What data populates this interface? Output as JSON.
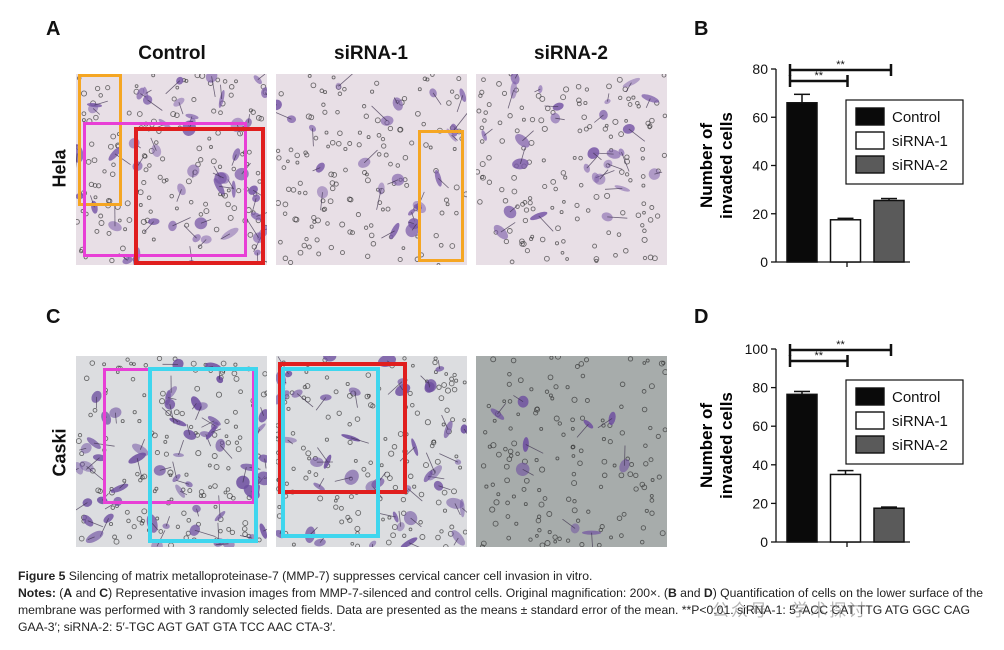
{
  "panels": {
    "a_letter": "A",
    "b_letter": "B",
    "c_letter": "C",
    "d_letter": "D"
  },
  "columns": [
    "Control",
    "siRNA-1",
    "siRNA-2"
  ],
  "rows": [
    "Hela",
    "Caski"
  ],
  "colors": {
    "hela_background": "#e8dfe6",
    "hela_cell": "#7a5aa8",
    "caski_background": "#dcdde0",
    "caski_cell": "#6e4fa0",
    "caski_sirna2_background": "#a7acab",
    "roi_orange": "#f5a623",
    "roi_magenta": "#e83fd6",
    "roi_red": "#e01e1e",
    "roi_cyan": "#3fd6ee",
    "bar_control": "#0a0a0a",
    "bar_sirna1": "#ffffff",
    "bar_sirna2": "#5a5a5a"
  },
  "chart_data": [
    {
      "panel": "B",
      "type": "bar",
      "categories": [
        "Control",
        "siRNA-1",
        "siRNA-2"
      ],
      "values": [
        66,
        17.5,
        25.5
      ],
      "errors": [
        3.5,
        0.6,
        0.8
      ],
      "ylabel_line1": "Number of",
      "ylabel_line2": "invaded cells",
      "ylim": [
        0,
        80
      ],
      "yticks": [
        0,
        20,
        40,
        60,
        80
      ],
      "legend": [
        "Control",
        "siRNA-1",
        "siRNA-2"
      ],
      "legend_position": "right",
      "significance": [
        {
          "from": 0,
          "to": 1,
          "label": "**"
        },
        {
          "from": 0,
          "to": 2,
          "label": "**"
        }
      ]
    },
    {
      "panel": "D",
      "type": "bar",
      "categories": [
        "Control",
        "siRNA-1",
        "siRNA-2"
      ],
      "values": [
        76.5,
        35,
        17.5
      ],
      "errors": [
        1.5,
        2.0,
        0.6
      ],
      "ylabel_line1": "Number of",
      "ylabel_line2": "invaded cells",
      "ylim": [
        0,
        100
      ],
      "yticks": [
        0,
        20,
        40,
        60,
        80,
        100
      ],
      "legend": [
        "Control",
        "siRNA-1",
        "siRNA-2"
      ],
      "legend_position": "right",
      "significance": [
        {
          "from": 0,
          "to": 1,
          "label": "**"
        },
        {
          "from": 0,
          "to": 2,
          "label": "**"
        }
      ]
    }
  ],
  "caption": {
    "fig_label": "Figure 5",
    "fig_title": " Silencing of matrix metalloproteinase-7 (MMP-7) suppresses cervical cancer cell invasion in vitro.",
    "notes_label": "Notes:",
    "notes_p1": " (",
    "notes_a": "A",
    "notes_and1": " and ",
    "notes_c": "C",
    "notes_p2": ") Representative invasion images from MMP-7-silenced and control cells. Original magnification: 200×. (",
    "notes_b": "B",
    "notes_and2": " and ",
    "notes_d": "D",
    "notes_p3": ") Quantification of cells on the lower surface of the membrane was performed with 3 randomly selected fields. Data are presented as the means ± standard error of the mean. **P<0.01. siRNA-1: 5′-ACC CAT TTG ATG GGC CAG GAA-3′; siRNA-2: 5′-TGC AGT GAT GTA TCC AAC CTA-3′."
  },
  "watermark": "公众号 · 学术探讨"
}
